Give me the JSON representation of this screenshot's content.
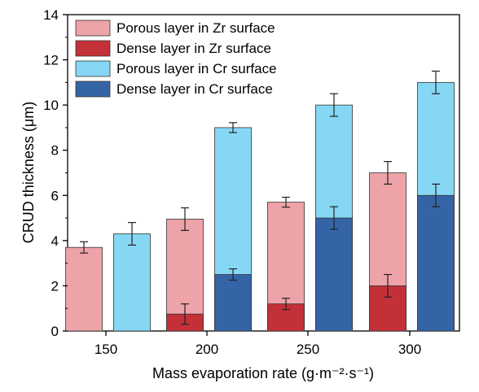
{
  "chart_data": {
    "type": "bar",
    "subtype": "stacked-grouped",
    "categories": [
      "150",
      "200",
      "250",
      "300"
    ],
    "xlabel": "Mass evaporation rate (g·m⁻²·s⁻¹)",
    "ylabel": "CRUD thickness (μm)",
    "ylim": [
      0,
      14
    ],
    "yticks": [
      0,
      2,
      4,
      6,
      8,
      10,
      12,
      14
    ],
    "grid": false,
    "legend_position": "top-left",
    "groups": [
      {
        "name": "Zr surface",
        "bars": [
          {
            "category": "150",
            "dense": 0,
            "dense_err": 0,
            "total": 3.7,
            "total_err": 0.25
          },
          {
            "category": "200",
            "dense": 0.75,
            "dense_err": 0.45,
            "total": 4.95,
            "total_err": 0.5
          },
          {
            "category": "250",
            "dense": 1.2,
            "dense_err": 0.25,
            "total": 5.7,
            "total_err": 0.22
          },
          {
            "category": "300",
            "dense": 2.0,
            "dense_err": 0.5,
            "total": 7.0,
            "total_err": 0.5
          }
        ]
      },
      {
        "name": "Cr surface",
        "bars": [
          {
            "category": "150",
            "dense": 0,
            "dense_err": 0,
            "total": 4.3,
            "total_err": 0.5
          },
          {
            "category": "200",
            "dense": 2.5,
            "dense_err": 0.25,
            "total": 9.0,
            "total_err": 0.22
          },
          {
            "category": "250",
            "dense": 5.0,
            "dense_err": 0.5,
            "total": 10.0,
            "total_err": 0.5
          },
          {
            "category": "300",
            "dense": 6.0,
            "dense_err": 0.5,
            "total": 11.0,
            "total_err": 0.5
          }
        ]
      }
    ],
    "legend": [
      {
        "label": "Porous layer in Zr surface",
        "color": "#eda3a8"
      },
      {
        "label": "Dense  layer in Zr surface",
        "color": "#c43038"
      },
      {
        "label": "Porous layer in Cr surface",
        "color": "#86d7f4"
      },
      {
        "label": "Dense  layer in Cr surface",
        "color": "#3564a6"
      }
    ],
    "colors": {
      "zr_porous": "#eda3a8",
      "zr_dense": "#c43038",
      "cr_porous": "#86d7f4",
      "cr_dense": "#3564a6"
    }
  }
}
